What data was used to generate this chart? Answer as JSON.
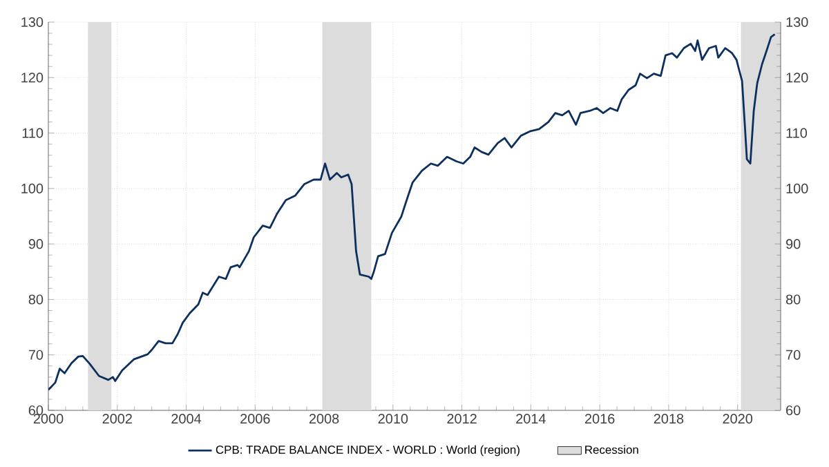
{
  "chart_data": {
    "type": "line",
    "x": [
      2000.0,
      2000.2,
      2000.33,
      2000.47,
      2000.67,
      2000.87,
      2001.0,
      2001.2,
      2001.47,
      2001.74,
      2001.87,
      2001.94,
      2002.14,
      2002.48,
      2002.88,
      2003.0,
      2003.2,
      2003.4,
      2003.6,
      2003.75,
      2003.9,
      2004.1,
      2004.35,
      2004.48,
      2004.62,
      2004.95,
      2005.15,
      2005.29,
      2005.49,
      2005.55,
      2005.82,
      2005.96,
      2006.22,
      2006.43,
      2006.63,
      2006.89,
      2007.16,
      2007.43,
      2007.7,
      2007.9,
      2008.03,
      2008.17,
      2008.37,
      2008.5,
      2008.7,
      2008.8,
      2008.93,
      2009.04,
      2009.3,
      2009.37,
      2009.44,
      2009.57,
      2009.77,
      2009.97,
      2010.24,
      2010.37,
      2010.57,
      2010.84,
      2011.1,
      2011.3,
      2011.57,
      2011.84,
      2012.04,
      2012.24,
      2012.37,
      2012.57,
      2012.77,
      2013.04,
      2013.24,
      2013.44,
      2013.71,
      2013.97,
      2014.24,
      2014.51,
      2014.71,
      2014.91,
      2015.1,
      2015.31,
      2015.44,
      2015.71,
      2015.91,
      2016.1,
      2016.31,
      2016.51,
      2016.64,
      2016.84,
      2017.04,
      2017.17,
      2017.37,
      2017.57,
      2017.77,
      2017.91,
      2018.1,
      2018.24,
      2018.44,
      2018.64,
      2018.77,
      2018.84,
      2018.97,
      2019.17,
      2019.37,
      2019.44,
      2019.64,
      2019.84,
      2019.97,
      2020.04,
      2020.13,
      2020.21,
      2020.27,
      2020.37,
      2020.47,
      2020.57,
      2020.71,
      2020.84,
      2020.97,
      2021.08
    ],
    "series": [
      {
        "name": "CPB: TRADE BALANCE INDEX - WORLD : World (region)",
        "color": "#0d2f5e",
        "values": [
          63.7,
          65,
          67.5,
          66.7,
          68.5,
          69.7,
          69.8,
          68.4,
          66.2,
          65.5,
          66,
          65.3,
          67.2,
          69.2,
          70.1,
          70.9,
          72.5,
          72.1,
          72.1,
          73.7,
          75.8,
          77.5,
          79.1,
          81.2,
          80.8,
          84.1,
          83.7,
          85.8,
          86.2,
          85.8,
          88.7,
          91.2,
          93.3,
          92.9,
          95.4,
          97.9,
          98.7,
          100.8,
          101.6,
          101.6,
          104.5,
          101.6,
          102.8,
          102,
          102.5,
          100.8,
          88.7,
          84.5,
          84.1,
          83.7,
          84.9,
          87.8,
          88.2,
          92,
          94.9,
          97.4,
          101.1,
          103.2,
          104.5,
          104.1,
          105.7,
          104.9,
          104.5,
          105.7,
          107.4,
          106.6,
          106.1,
          108.2,
          109.1,
          107.4,
          109.5,
          110.3,
          110.7,
          112,
          113.6,
          113.2,
          114,
          111.5,
          113.6,
          114,
          114.5,
          113.6,
          114.5,
          114,
          116.1,
          117.8,
          118.6,
          120.7,
          119.9,
          120.7,
          120.3,
          124,
          124.4,
          123.6,
          125.3,
          126.1,
          124.8,
          126.7,
          123.2,
          125.3,
          125.7,
          123.6,
          125.3,
          124.4,
          123.2,
          121.5,
          119.4,
          111.5,
          105.3,
          104.5,
          114,
          119,
          122.4,
          124.8,
          127.3,
          127.8
        ]
      }
    ],
    "xlim": [
      2000,
      2021.25
    ],
    "xticks": [
      2000,
      2002,
      2004,
      2006,
      2008,
      2010,
      2012,
      2014,
      2016,
      2018,
      2020
    ],
    "ylim": [
      60,
      130
    ],
    "yticks": [
      60,
      70,
      80,
      90,
      100,
      110,
      120,
      130
    ],
    "y2lim": [
      60,
      130
    ],
    "y2ticks": [
      60,
      70,
      80,
      90,
      100,
      110,
      120,
      130
    ],
    "bands": [
      {
        "axis": "x",
        "from": 2001.15,
        "to": 2001.83,
        "label": "Recession",
        "color": "#dcdcdc"
      },
      {
        "axis": "x",
        "from": 2007.95,
        "to": 2009.37,
        "color": "#dcdcdc"
      },
      {
        "axis": "x",
        "from": 2020.1,
        "to": 2021.25,
        "color": "#dcdcdc"
      }
    ],
    "grid": true,
    "legend": "bottom",
    "line_style": "solid",
    "marker": "none"
  }
}
